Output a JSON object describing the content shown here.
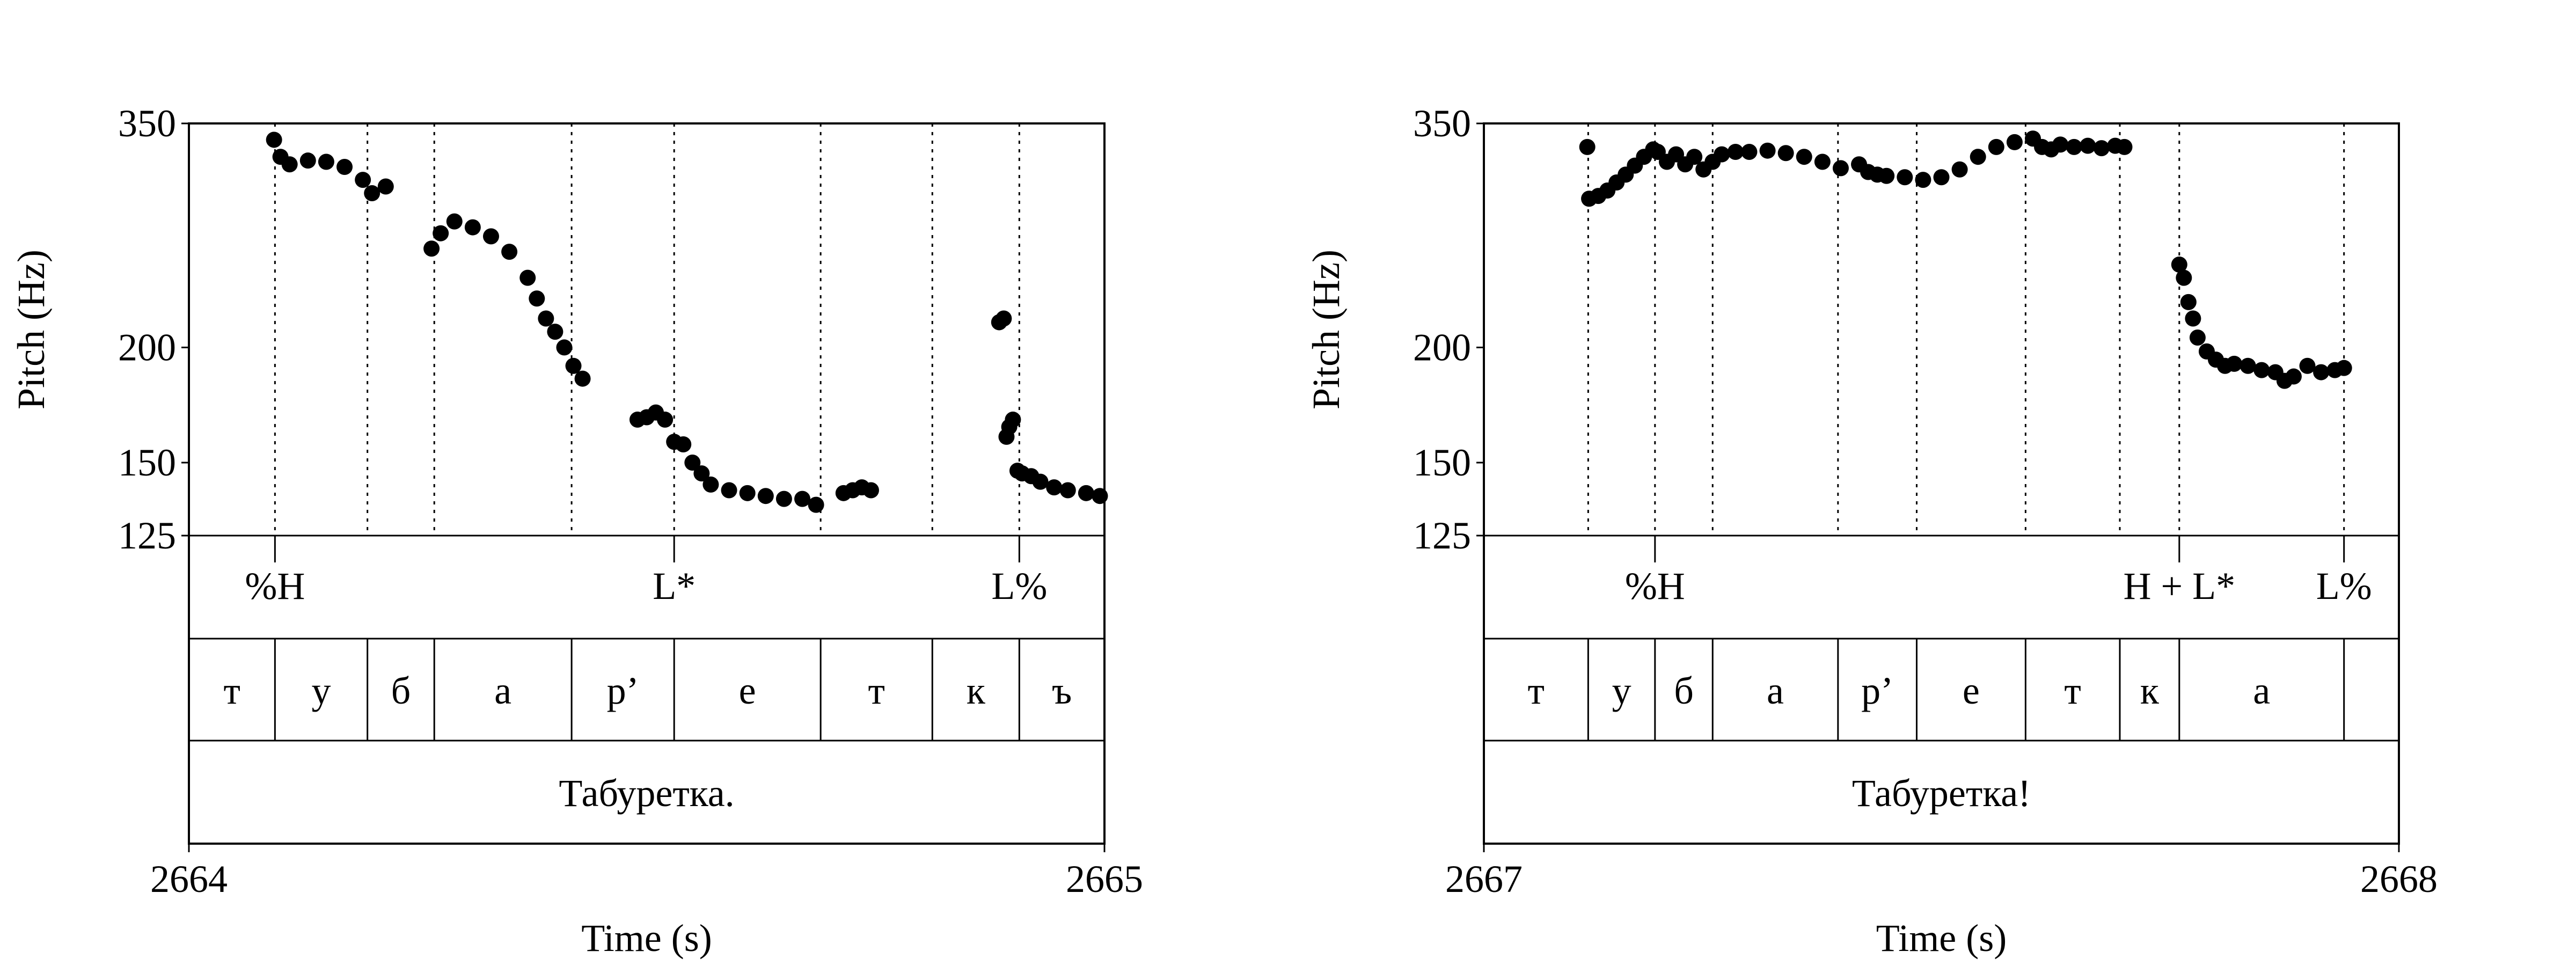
{
  "colors": {
    "ink": "#000000",
    "background": "#ffffff"
  },
  "chart_data": [
    {
      "type": "scatter",
      "title": "",
      "ylabel": "Pitch (Hz)",
      "xlabel": "Time (s)",
      "xlim": [
        2664,
        2665
      ],
      "ylim": [
        125,
        350
      ],
      "yscale": "log",
      "yticks": [
        125,
        150,
        200,
        350
      ],
      "yticklabels": [
        "125",
        "150",
        "200",
        "350"
      ],
      "xticklabels": [
        "2664",
        "2665"
      ],
      "boundaries": [
        0.094,
        0.195,
        0.268,
        0.418,
        0.53,
        0.69,
        0.812,
        0.907
      ],
      "tones": [
        {
          "label": "%H",
          "t": 0.094
        },
        {
          "label": "L*",
          "t": 0.53
        },
        {
          "label": "L%",
          "t": 0.907
        }
      ],
      "segments": [
        "т",
        "у",
        "б",
        "а",
        "р’",
        "е",
        "т",
        "к",
        "ъ"
      ],
      "word": "Табуретка.",
      "pitch_segments": [
        {
          "t": [
            0.093,
            0.1,
            0.11,
            0.13,
            0.15,
            0.17,
            0.19,
            0.2,
            0.215
          ],
          "f0": [
            336,
            322,
            316,
            319,
            318,
            314,
            304,
            294,
            299
          ]
        },
        {
          "t": [
            0.265,
            0.275,
            0.29,
            0.31,
            0.33,
            0.35,
            0.37,
            0.38,
            0.39,
            0.4,
            0.41,
            0.42,
            0.43
          ],
          "f0": [
            256,
            266,
            274,
            270,
            264,
            254,
            238,
            226,
            215,
            208,
            200,
            191,
            185
          ]
        },
        {
          "t": [
            0.49,
            0.5,
            0.51,
            0.52,
            0.53,
            0.54,
            0.55,
            0.56,
            0.57,
            0.59,
            0.61,
            0.63,
            0.65,
            0.67,
            0.685
          ],
          "f0": [
            167,
            168,
            170,
            167,
            158,
            157,
            150,
            146,
            142,
            140,
            139,
            138,
            137,
            137,
            135
          ]
        },
        {
          "t": [
            0.715,
            0.725,
            0.735,
            0.745
          ],
          "f0": [
            139,
            140,
            141,
            140
          ]
        },
        {
          "t": [
            0.885,
            0.89,
            0.893,
            0.896,
            0.9,
            0.905,
            0.91,
            0.92,
            0.93,
            0.945,
            0.96,
            0.98,
            0.995
          ],
          "f0": [
            213,
            215,
            160,
            164,
            167,
            147,
            146,
            145,
            143,
            141,
            140,
            139,
            138
          ]
        }
      ]
    },
    {
      "type": "scatter",
      "title": "",
      "ylabel": "Pitch (Hz)",
      "xlabel": "Time (s)",
      "xlim": [
        2667,
        2668
      ],
      "ylim": [
        125,
        350
      ],
      "yscale": "log",
      "yticks": [
        125,
        150,
        200,
        350
      ],
      "yticklabels": [
        "125",
        "150",
        "200",
        "350"
      ],
      "xticklabels": [
        "2667",
        "2668"
      ],
      "boundaries": [
        0.114,
        0.187,
        0.25,
        0.387,
        0.473,
        0.592,
        0.695,
        0.76,
        0.94
      ],
      "tones": [
        {
          "label": "%H",
          "t": 0.187
        },
        {
          "label": "H + L*",
          "t": 0.76
        },
        {
          "label": "L%",
          "t": 0.94
        }
      ],
      "segments": [
        "т",
        "у",
        "б",
        "а",
        "р’",
        "е",
        "т",
        "к",
        "а"
      ],
      "word": "Табуретка!",
      "pitch_segments": [
        {
          "t": [
            0.113
          ],
          "f0": [
            330
          ]
        },
        {
          "t": [
            0.115,
            0.125,
            0.135,
            0.145,
            0.155,
            0.165,
            0.175,
            0.185,
            0.19,
            0.2,
            0.21,
            0.22,
            0.23,
            0.24,
            0.25,
            0.26,
            0.275,
            0.29,
            0.31,
            0.33,
            0.35,
            0.37,
            0.39,
            0.41,
            0.42,
            0.43,
            0.44,
            0.46,
            0.48,
            0.5,
            0.52,
            0.54,
            0.56,
            0.58,
            0.6,
            0.61,
            0.62,
            0.63,
            0.645,
            0.66,
            0.675,
            0.69,
            0.7
          ],
          "f0": [
            290,
            292,
            296,
            302,
            308,
            315,
            322,
            328,
            326,
            318,
            324,
            316,
            322,
            312,
            318,
            324,
            326,
            326,
            327,
            325,
            322,
            318,
            313,
            316,
            310,
            308,
            307,
            306,
            304,
            306,
            312,
            322,
            330,
            334,
            337,
            330,
            328,
            332,
            330,
            331,
            329,
            331,
            330
          ]
        },
        {
          "t": [
            0.76,
            0.765,
            0.77,
            0.775,
            0.78,
            0.79,
            0.8,
            0.81,
            0.82,
            0.835,
            0.85,
            0.865,
            0.875,
            0.885,
            0.9,
            0.915,
            0.93,
            0.94
          ],
          "f0": [
            246,
            238,
            224,
            215,
            205,
            198,
            194,
            191,
            192,
            191,
            189,
            188,
            184,
            186,
            191,
            188,
            189,
            190
          ]
        }
      ]
    }
  ]
}
